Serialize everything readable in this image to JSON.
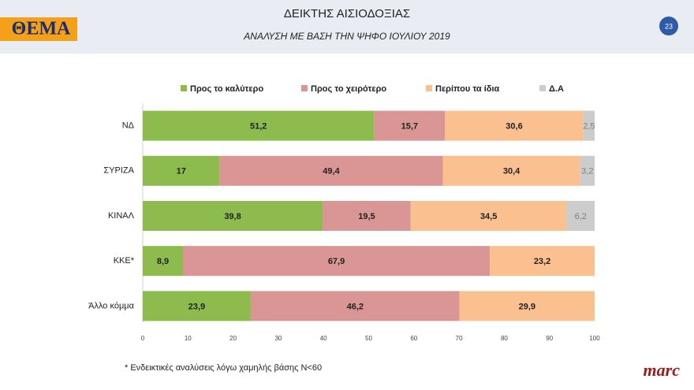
{
  "header": {
    "logo": "ΘΕΜΑ",
    "page_number": 23
  },
  "chart_data": {
    "type": "stacked-bar-horizontal",
    "title": "ΔΕΙΚΤΗΣ ΑΙΣΙΟΔΟΞΙΑΣ",
    "subtitle": "ΑΝΑΛΥΣΗ ΜΕ ΒΑΣΗ ΤΗΝ ΨΗΦΟ ΙΟΥΛΙΟΥ 2019",
    "categories": [
      "ΝΔ",
      "ΣΥΡΙΖΑ",
      "ΚΙΝΑΛ",
      "ΚΚΕ*",
      "Άλλο κόμμα"
    ],
    "series": [
      {
        "name": "Προς το καλύτερο",
        "color": "#8dbb4e",
        "label_color": "#222222",
        "values": [
          51.2,
          17,
          39.8,
          8.9,
          23.9
        ],
        "value_labels": [
          "51,2",
          "17",
          "39,8",
          "8,9",
          "23,9"
        ]
      },
      {
        "name": "Προς το χειρότερο",
        "color": "#d99694",
        "label_color": "#222222",
        "values": [
          15.7,
          49.4,
          19.5,
          67.9,
          46.2
        ],
        "value_labels": [
          "15,7",
          "49,4",
          "19,5",
          "67,9",
          "46,2"
        ]
      },
      {
        "name": "Περίπου τα ίδια",
        "color": "#fac090",
        "label_color": "#222222",
        "values": [
          30.6,
          30.4,
          34.5,
          23.2,
          29.9
        ],
        "value_labels": [
          "30,6",
          "30,4",
          "34,5",
          "23,2",
          "29,9"
        ]
      },
      {
        "name": "Δ.Α",
        "color": "#cccccc",
        "label_color": "#7f7f7f",
        "values": [
          2.5,
          3.2,
          6.2,
          null,
          null
        ],
        "value_labels": [
          "2,5",
          "3,2",
          "6,2",
          null,
          null
        ]
      }
    ],
    "xlim": [
      0,
      100
    ],
    "xticks": [
      0,
      10,
      20,
      30,
      40,
      50,
      60,
      70,
      80,
      90,
      100
    ],
    "grid": false
  },
  "footnote": "* Ενδεικτικές αναλύσεις λόγω χαμηλής βάσης Ν<60",
  "brand": "marc"
}
